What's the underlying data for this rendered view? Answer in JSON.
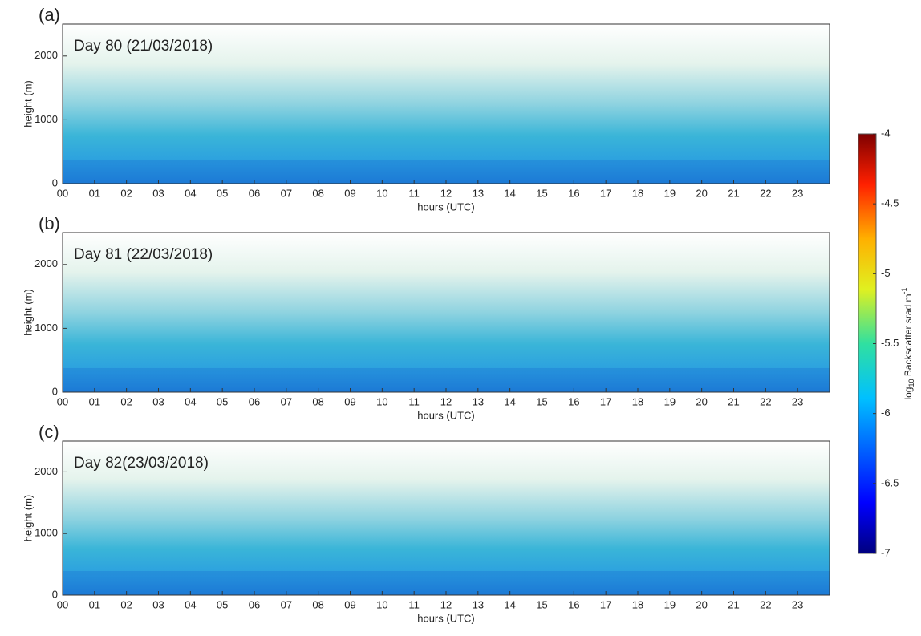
{
  "chart_data": [
    {
      "type": "heatmap",
      "panel_label": "(a)",
      "annotation": "Day 80 (21/03/2018)",
      "xlabel": "hours (UTC)",
      "ylabel": "height (m)",
      "xlim": [
        0,
        24
      ],
      "xticks": [
        {
          "value": 0,
          "label": "00"
        },
        {
          "value": 1,
          "label": "01"
        },
        {
          "value": 2,
          "label": "02"
        },
        {
          "value": 3,
          "label": "03"
        },
        {
          "value": 4,
          "label": "04"
        },
        {
          "value": 5,
          "label": "05"
        },
        {
          "value": 6,
          "label": "06"
        },
        {
          "value": 7,
          "label": "07"
        },
        {
          "value": 8,
          "label": "08"
        },
        {
          "value": 9,
          "label": "09"
        },
        10,
        11,
        12,
        13,
        14,
        15,
        16,
        17,
        18,
        19,
        20,
        21,
        22,
        23
      ],
      "ylim": [
        0,
        2500
      ],
      "yticks": [
        0,
        1000,
        2000
      ]
    },
    {
      "type": "heatmap",
      "panel_label": "(b)",
      "annotation": "Day 81 (22/03/2018)",
      "xlabel": "hours (UTC)",
      "ylabel": "height (m)",
      "xlim": [
        0,
        24
      ],
      "xticks": [
        {
          "value": 0,
          "label": "00"
        },
        {
          "value": 1,
          "label": "01"
        },
        {
          "value": 2,
          "label": "02"
        },
        {
          "value": 3,
          "label": "03"
        },
        {
          "value": 4,
          "label": "04"
        },
        {
          "value": 5,
          "label": "05"
        },
        {
          "value": 6,
          "label": "06"
        },
        {
          "value": 7,
          "label": "07"
        },
        {
          "value": 8,
          "label": "08"
        },
        {
          "value": 9,
          "label": "09"
        },
        10,
        11,
        12,
        13,
        14,
        15,
        16,
        17,
        18,
        19,
        20,
        21,
        22,
        23
      ],
      "ylim": [
        0,
        2500
      ],
      "yticks": [
        0,
        1000,
        2000
      ]
    },
    {
      "type": "heatmap",
      "panel_label": "(c)",
      "annotation": "Day 82(23/03/2018)",
      "xlabel": "hours (UTC)",
      "ylabel": "height (m)",
      "xlim": [
        0,
        24
      ],
      "xticks": [
        {
          "value": 0,
          "label": "00"
        },
        {
          "value": 1,
          "label": "01"
        },
        {
          "value": 2,
          "label": "02"
        },
        {
          "value": 3,
          "label": "03"
        },
        {
          "value": 4,
          "label": "04"
        },
        {
          "value": 5,
          "label": "05"
        },
        {
          "value": 6,
          "label": "06"
        },
        {
          "value": 7,
          "label": "07"
        },
        {
          "value": 8,
          "label": "08"
        },
        {
          "value": 9,
          "label": "09"
        },
        10,
        11,
        12,
        13,
        14,
        15,
        16,
        17,
        18,
        19,
        20,
        21,
        22,
        23
      ],
      "ylim": [
        0,
        2500
      ],
      "yticks": [
        0,
        1000,
        2000
      ]
    },
    {
      "type": "colorbar",
      "label": {
        "text": "log",
        "sub": "10",
        "rest": " Backscatter srad m",
        "sup": "-1"
      },
      "lim": [
        -7,
        -4
      ],
      "ticks": [
        -7,
        -6.5,
        -6,
        -5.5,
        -5,
        -4.5,
        -4
      ]
    }
  ]
}
